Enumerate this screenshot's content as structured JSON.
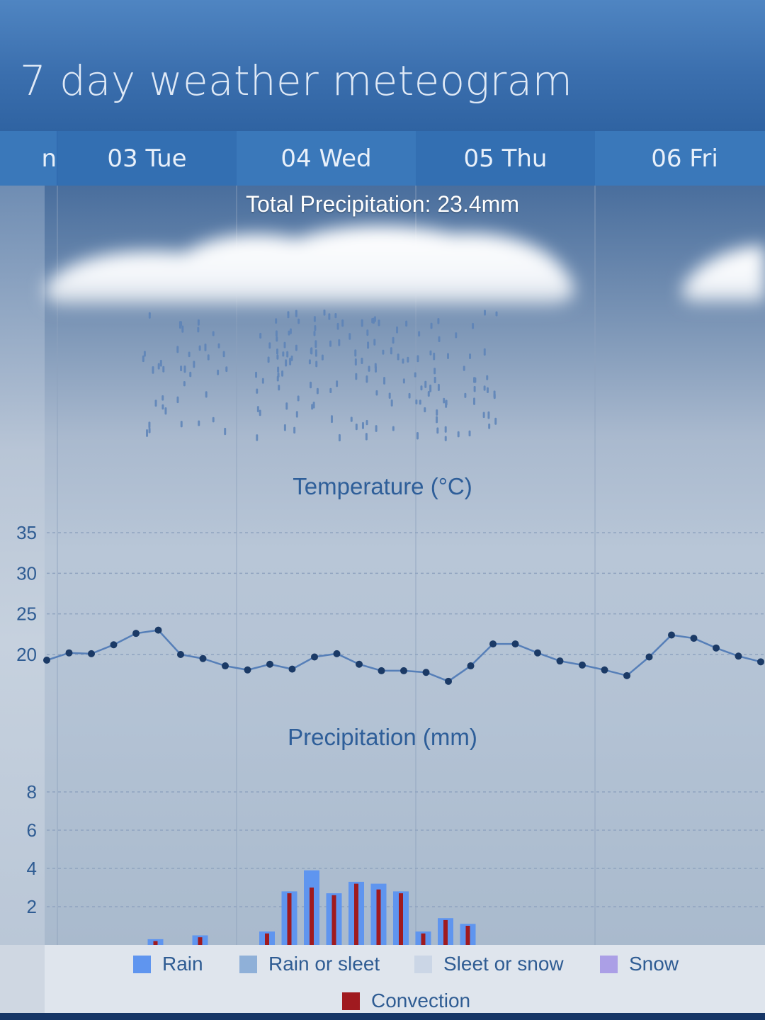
{
  "page": {
    "title": "7 day weather meteogram"
  },
  "tabs": [
    {
      "label": "n"
    },
    {
      "label": "03 Tue"
    },
    {
      "label": "04 Wed"
    },
    {
      "label": "05 Thu"
    },
    {
      "label": "06 Fri"
    }
  ],
  "total_precipitation": "Total Precipitation: 23.4mm",
  "temperature_title": "Temperature (°C)",
  "precipitation_title": "Precipitation (mm)",
  "legend": [
    {
      "label": "Rain",
      "color": "#5f95ef"
    },
    {
      "label": "Rain or sleet",
      "color": "#8fb0d8"
    },
    {
      "label": "Sleet or snow",
      "color": "#cbd6e6"
    },
    {
      "label": "Snow",
      "color": "#ab9fe6"
    },
    {
      "label": "Convection",
      "color": "#a01a1f"
    }
  ],
  "colors": {
    "temperature_line": "#567fb8",
    "temperature_point": "#1b3a66",
    "rain_bar": "#5f95ef",
    "convection_bar": "#a01a1f"
  },
  "chart_data": [
    {
      "type": "line",
      "title": "Temperature (°C)",
      "y_ticks": [
        20,
        25,
        30,
        35
      ],
      "ylim": [
        5,
        37
      ],
      "grid": true,
      "x_hour_offsets": [
        0,
        3,
        6,
        9,
        12,
        15,
        18,
        21,
        24,
        27,
        30,
        33,
        36,
        39,
        42,
        45,
        48,
        51,
        54,
        57,
        60,
        63,
        66,
        69,
        72,
        75,
        78,
        81,
        84,
        87,
        90,
        93,
        96
      ],
      "values": [
        19.3,
        20.2,
        20.1,
        21.2,
        22.6,
        23.0,
        20.0,
        19.5,
        18.6,
        18.1,
        18.8,
        18.2,
        19.7,
        20.1,
        18.8,
        18.0,
        18.0,
        17.8,
        16.7,
        18.6,
        21.3,
        21.3,
        20.2,
        19.2,
        18.7,
        18.1,
        17.4,
        19.7,
        22.4,
        22.0,
        20.8,
        19.8,
        19.1
      ]
    },
    {
      "type": "bar",
      "title": "Precipitation (mm)",
      "y_ticks": [
        2,
        4,
        6,
        8
      ],
      "ylim": [
        0,
        9
      ],
      "grid": true,
      "x_hour_offsets": [
        15,
        21,
        30,
        33,
        36,
        39,
        42,
        45,
        48,
        51,
        54,
        57
      ],
      "series": [
        {
          "name": "Rain",
          "values": [
            0.3,
            0.5,
            0.7,
            2.8,
            3.9,
            2.7,
            3.3,
            3.2,
            2.8,
            0.7,
            1.4,
            1.1
          ]
        },
        {
          "name": "Convection",
          "values": [
            0.2,
            0.4,
            0.6,
            2.7,
            3.0,
            2.6,
            3.2,
            2.9,
            2.7,
            0.6,
            1.3,
            1.0
          ]
        }
      ]
    }
  ]
}
